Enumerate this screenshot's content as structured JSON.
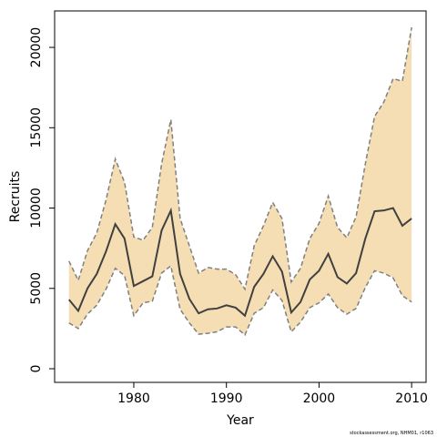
{
  "chart_data": {
    "type": "line",
    "xlabel": "Year",
    "ylabel": "Recruits",
    "footer": "stockassessment.org, NHM01, r1063",
    "x": [
      1973,
      1974,
      1975,
      1976,
      1977,
      1978,
      1979,
      1980,
      1981,
      1982,
      1983,
      1984,
      1985,
      1986,
      1987,
      1988,
      1989,
      1990,
      1991,
      1992,
      1993,
      1994,
      1995,
      1996,
      1997,
      1998,
      1999,
      2000,
      2001,
      2002,
      2003,
      2004,
      2005,
      2006,
      2007,
      2008,
      2009,
      2010
    ],
    "values": [
      4300,
      3600,
      5000,
      5900,
      7300,
      9000,
      8100,
      5150,
      5450,
      5750,
      8600,
      9850,
      5900,
      4350,
      3450,
      3700,
      3750,
      3950,
      3800,
      3300,
      5100,
      5900,
      7000,
      6050,
      3500,
      4150,
      5550,
      6100,
      7150,
      5700,
      5300,
      5950,
      8100,
      9800,
      9850,
      10000,
      8900,
      9350
    ],
    "upper": [
      6700,
      5500,
      7350,
      8450,
      10500,
      13050,
      11600,
      8200,
      8000,
      8800,
      12750,
      15500,
      9350,
      7650,
      5950,
      6300,
      6200,
      6200,
      5850,
      4950,
      7650,
      8900,
      10350,
      9350,
      5400,
      6250,
      8100,
      9050,
      10750,
      8800,
      8150,
      9450,
      12750,
      15700,
      16600,
      18050,
      17900,
      21250
    ],
    "lower": [
      2850,
      2500,
      3400,
      3950,
      4950,
      6250,
      5800,
      3300,
      4100,
      4200,
      5950,
      6400,
      3700,
      2850,
      2150,
      2200,
      2300,
      2600,
      2600,
      2100,
      3450,
      3800,
      4900,
      4250,
      2300,
      2900,
      3800,
      4100,
      4650,
      3800,
      3400,
      3750,
      5050,
      6100,
      5950,
      5650,
      4550,
      4150
    ],
    "color": "#404040",
    "band_color": "#f5deb3",
    "band_line_color": "#808080",
    "xlim": [
      1971.45,
      2011.56
    ],
    "ylim": [
      -850,
      22270
    ],
    "xticks": [
      1980,
      1990,
      2000,
      2010
    ],
    "yticks": [
      0,
      5000,
      10000,
      15000,
      20000
    ]
  }
}
